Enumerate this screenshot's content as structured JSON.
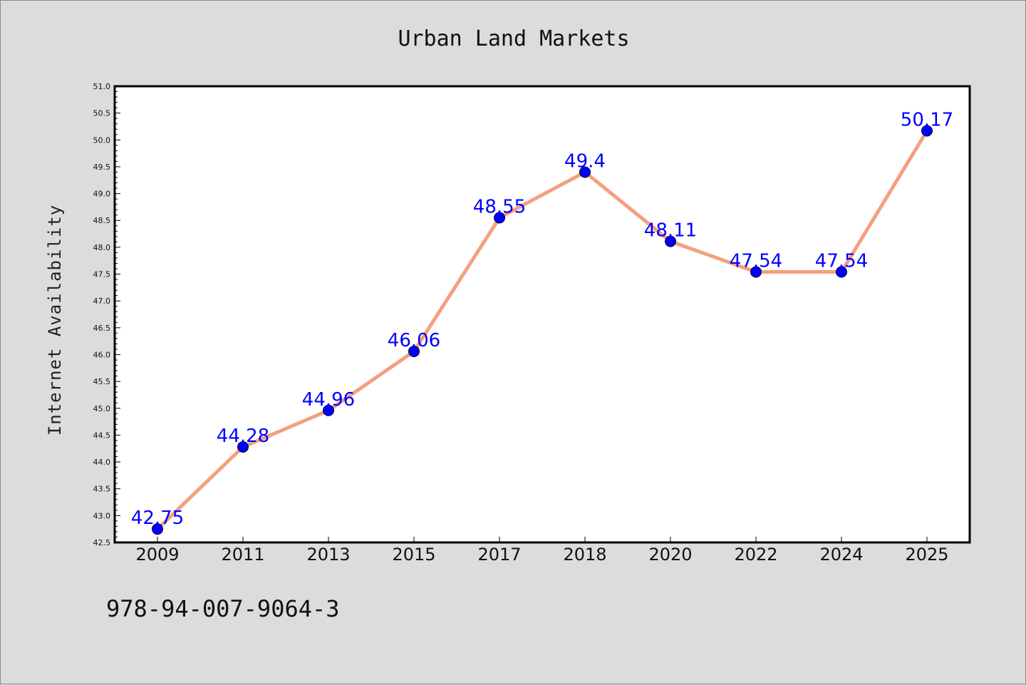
{
  "chart_data": {
    "type": "line",
    "title": "Urban Land Markets",
    "xlabel": "",
    "ylabel": "Internet Availability",
    "categories": [
      "2009",
      "2011",
      "2013",
      "2015",
      "2017",
      "2018",
      "2020",
      "2022",
      "2024",
      "2025"
    ],
    "series": [
      {
        "values": [
          42.75,
          44.28,
          44.96,
          46.06,
          48.55,
          49.4,
          48.11,
          47.54,
          47.54,
          50.17
        ],
        "labels": [
          "42.75",
          "44.28",
          "44.96",
          "46.06",
          "48.55",
          "49.4",
          "48.11",
          "47.54",
          "47.54",
          "50.17"
        ]
      }
    ],
    "ylim": [
      42.5,
      51.0
    ],
    "yticks": [
      "42.5",
      "43.0",
      "43.5",
      "44.0",
      "44.5",
      "45.0",
      "45.5",
      "46.0",
      "46.5",
      "47.0",
      "47.5",
      "48.0",
      "48.5",
      "49.0",
      "49.5",
      "50.0",
      "50.5",
      "51.0"
    ],
    "grid": false,
    "colors": {
      "line": "#f4a07e",
      "marker": "#0000ff",
      "label": "#0000ff",
      "background": "#dcdcdc",
      "plot_background": "#ffffff"
    }
  },
  "footnote": "978-94-007-9064-3"
}
